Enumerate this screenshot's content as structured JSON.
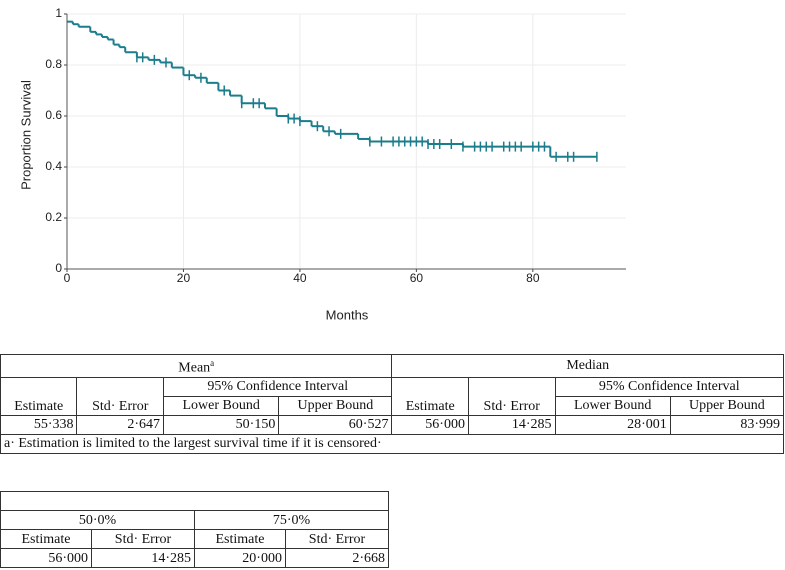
{
  "chart_data": {
    "type": "step",
    "ylabel": "Proportion Survival",
    "xlabel": "Months",
    "color": "#1b7d8c",
    "grid": true,
    "xlim": [
      0,
      96
    ],
    "ylim": [
      0,
      1
    ],
    "xticks": [
      0,
      20,
      40,
      60,
      80
    ],
    "yticks": [
      0,
      0.2,
      0.4,
      0.6,
      0.8,
      1
    ],
    "series": [
      {
        "x": [
          0,
          1,
          2,
          4,
          5,
          6,
          7,
          8,
          9,
          10,
          12,
          14,
          16,
          18,
          20,
          22,
          24,
          26,
          28,
          30,
          34,
          36,
          38,
          40,
          42,
          44,
          46,
          50,
          52,
          62,
          68,
          83
        ],
        "values": [
          0.97,
          0.96,
          0.95,
          0.93,
          0.92,
          0.91,
          0.9,
          0.88,
          0.87,
          0.85,
          0.83,
          0.82,
          0.81,
          0.79,
          0.76,
          0.75,
          0.73,
          0.7,
          0.68,
          0.65,
          0.63,
          0.6,
          0.59,
          0.58,
          0.56,
          0.54,
          0.53,
          0.51,
          0.5,
          0.49,
          0.48,
          0.44
        ]
      },
      {
        "x": [
          12,
          13,
          15,
          17,
          21,
          23,
          27,
          30,
          32,
          33,
          38,
          39,
          40,
          43,
          45,
          47,
          52,
          54,
          56,
          57,
          58,
          59,
          60,
          61,
          62,
          63,
          64,
          66,
          68,
          70,
          71,
          72,
          73,
          75,
          76,
          77,
          78,
          80,
          81,
          82,
          84,
          86,
          87,
          91
        ],
        "values": [
          0.83,
          0.83,
          0.82,
          0.81,
          0.76,
          0.75,
          0.7,
          0.65,
          0.65,
          0.65,
          0.59,
          0.59,
          0.58,
          0.56,
          0.54,
          0.53,
          0.5,
          0.5,
          0.5,
          0.5,
          0.5,
          0.5,
          0.5,
          0.5,
          0.49,
          0.49,
          0.49,
          0.49,
          0.48,
          0.48,
          0.48,
          0.48,
          0.48,
          0.48,
          0.48,
          0.48,
          0.48,
          0.48,
          0.48,
          0.48,
          0.44,
          0.44,
          0.44,
          0.44
        ]
      }
    ]
  },
  "tables": [
    {
      "group_row": [
        "Mean",
        "Median"
      ],
      "group_sup": "a",
      "sub_row": [
        "95% Confidence Interval",
        "95% Confidence Interval"
      ],
      "header_row": [
        "Estimate",
        "Std· Error",
        "Lower Bound",
        "Upper Bound",
        "Estimate",
        "Std· Error",
        "Lower Bound",
        "Upper Bound"
      ],
      "data_row": [
        "55·338",
        "2·647",
        "50·150",
        "60·527",
        "56·000",
        "14·285",
        "28·001",
        "83·999"
      ],
      "footnote": "a· Estimation is limited to the largest survival time if it is censored·"
    },
    {
      "group_row": [
        "50·0%",
        "75·0%"
      ],
      "header_row": [
        "Estimate",
        "Std· Error",
        "Estimate",
        "Std· Error"
      ],
      "data_row": [
        "56·000",
        "14·285",
        "20·000",
        "2·668"
      ]
    }
  ]
}
